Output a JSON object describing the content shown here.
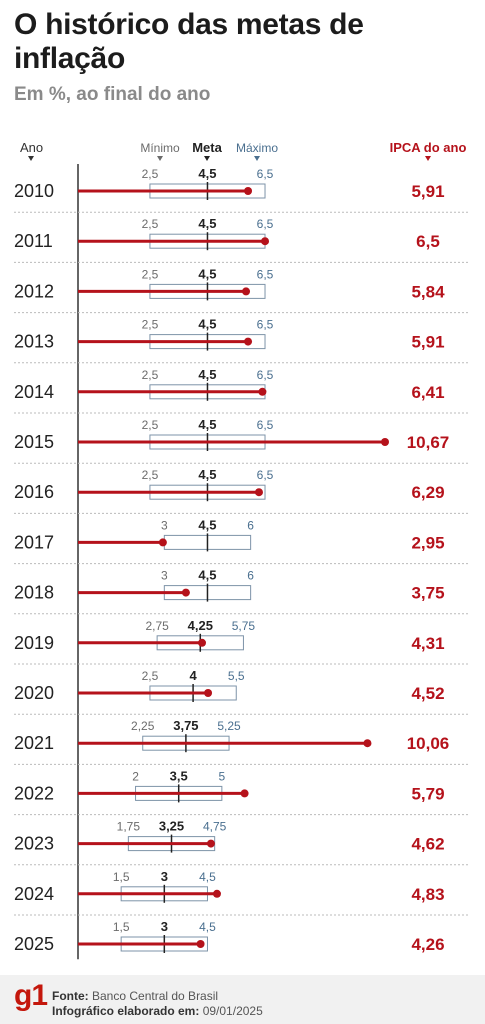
{
  "title": "O histórico das metas de inflação",
  "subtitle": "Em %, ao final do ano",
  "colors": {
    "ipca": "#b5121b",
    "meta": "#222222",
    "minimo": "#6b6b6b",
    "maximo": "#4a6f8f",
    "band": "#7d93a8"
  },
  "chart_data": {
    "type": "dumbbell",
    "headers": {
      "year": "Ano",
      "min": "Mínimo",
      "target": "Meta",
      "max": "Máximo",
      "ipca": "IPCA do ano"
    },
    "rows": [
      {
        "year": "2010",
        "min": 2.5,
        "min_label": "2,5",
        "target": 4.5,
        "target_label": "4,5",
        "max": 6.5,
        "max_label": "6,5",
        "ipca": 5.91,
        "ipca_label": "5,91"
      },
      {
        "year": "2011",
        "min": 2.5,
        "min_label": "2,5",
        "target": 4.5,
        "target_label": "4,5",
        "max": 6.5,
        "max_label": "6,5",
        "ipca": 6.5,
        "ipca_label": "6,5"
      },
      {
        "year": "2012",
        "min": 2.5,
        "min_label": "2,5",
        "target": 4.5,
        "target_label": "4,5",
        "max": 6.5,
        "max_label": "6,5",
        "ipca": 5.84,
        "ipca_label": "5,84"
      },
      {
        "year": "2013",
        "min": 2.5,
        "min_label": "2,5",
        "target": 4.5,
        "target_label": "4,5",
        "max": 6.5,
        "max_label": "6,5",
        "ipca": 5.91,
        "ipca_label": "5,91"
      },
      {
        "year": "2014",
        "min": 2.5,
        "min_label": "2,5",
        "target": 4.5,
        "target_label": "4,5",
        "max": 6.5,
        "max_label": "6,5",
        "ipca": 6.41,
        "ipca_label": "6,41"
      },
      {
        "year": "2015",
        "min": 2.5,
        "min_label": "2,5",
        "target": 4.5,
        "target_label": "4,5",
        "max": 6.5,
        "max_label": "6,5",
        "ipca": 10.67,
        "ipca_label": "10,67"
      },
      {
        "year": "2016",
        "min": 2.5,
        "min_label": "2,5",
        "target": 4.5,
        "target_label": "4,5",
        "max": 6.5,
        "max_label": "6,5",
        "ipca": 6.29,
        "ipca_label": "6,29"
      },
      {
        "year": "2017",
        "min": 3,
        "min_label": "3",
        "target": 4.5,
        "target_label": "4,5",
        "max": 6,
        "max_label": "6",
        "ipca": 2.95,
        "ipca_label": "2,95"
      },
      {
        "year": "2018",
        "min": 3,
        "min_label": "3",
        "target": 4.5,
        "target_label": "4,5",
        "max": 6,
        "max_label": "6",
        "ipca": 3.75,
        "ipca_label": "3,75"
      },
      {
        "year": "2019",
        "min": 2.75,
        "min_label": "2,75",
        "target": 4.25,
        "target_label": "4,25",
        "max": 5.75,
        "max_label": "5,75",
        "ipca": 4.31,
        "ipca_label": "4,31"
      },
      {
        "year": "2020",
        "min": 2.5,
        "min_label": "2,5",
        "target": 4,
        "target_label": "4",
        "max": 5.5,
        "max_label": "5,5",
        "ipca": 4.52,
        "ipca_label": "4,52"
      },
      {
        "year": "2021",
        "min": 2.25,
        "min_label": "2,25",
        "target": 3.75,
        "target_label": "3,75",
        "max": 5.25,
        "max_label": "5,25",
        "ipca": 10.06,
        "ipca_label": "10,06"
      },
      {
        "year": "2022",
        "min": 2,
        "min_label": "2",
        "target": 3.5,
        "target_label": "3,5",
        "max": 5,
        "max_label": "5",
        "ipca": 5.79,
        "ipca_label": "5,79"
      },
      {
        "year": "2023",
        "min": 1.75,
        "min_label": "1,75",
        "target": 3.25,
        "target_label": "3,25",
        "max": 4.75,
        "max_label": "4,75",
        "ipca": 4.62,
        "ipca_label": "4,62"
      },
      {
        "year": "2024",
        "min": 1.5,
        "min_label": "1,5",
        "target": 3,
        "target_label": "3",
        "max": 4.5,
        "max_label": "4,5",
        "ipca": 4.83,
        "ipca_label": "4,83"
      },
      {
        "year": "2025",
        "min": 1.5,
        "min_label": "1,5",
        "target": 3,
        "target_label": "3",
        "max": 4.5,
        "max_label": "4,5",
        "ipca": 4.26,
        "ipca_label": "4,26"
      }
    ]
  },
  "footer": {
    "logo": "g1",
    "source_label": "Fonte:",
    "source_value": "Banco Central do Brasil",
    "made_label": "Infográfico elaborado em:",
    "made_value": "09/01/2025"
  }
}
